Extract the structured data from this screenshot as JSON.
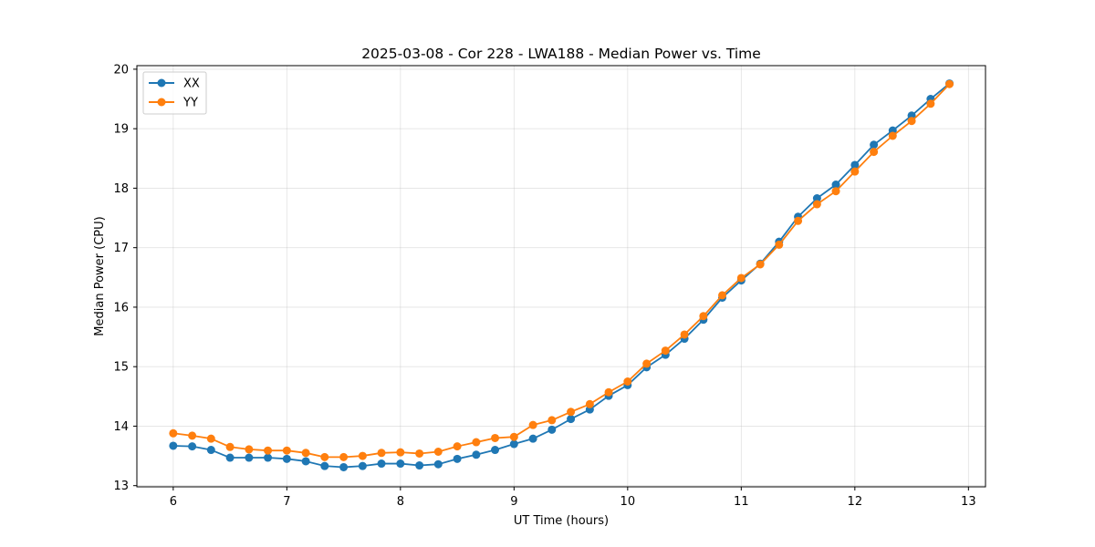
{
  "chart_data": {
    "type": "line",
    "title": "2025-03-08 - Cor 228 - LWA188 - Median Power vs. Time",
    "xlabel": "UT Time (hours)",
    "ylabel": "Median Power (CPU)",
    "xlim": [
      5.68,
      13.15
    ],
    "ylim": [
      12.98,
      20.06
    ],
    "xticks": [
      6,
      7,
      8,
      9,
      10,
      11,
      12,
      13
    ],
    "yticks": [
      13,
      14,
      15,
      16,
      17,
      18,
      19,
      20
    ],
    "grid": true,
    "legend_position": "upper-left",
    "x": [
      6.0,
      6.167,
      6.333,
      6.5,
      6.667,
      6.833,
      7.0,
      7.167,
      7.333,
      7.5,
      7.667,
      7.833,
      8.0,
      8.167,
      8.333,
      8.5,
      8.667,
      8.833,
      9.0,
      9.167,
      9.333,
      9.5,
      9.667,
      9.833,
      10.0,
      10.167,
      10.333,
      10.5,
      10.667,
      10.833,
      11.0,
      11.167,
      11.333,
      11.5,
      11.667,
      11.833,
      12.0,
      12.167,
      12.333,
      12.5,
      12.667,
      12.833
    ],
    "series": [
      {
        "name": "XX",
        "color": "#1f77b4",
        "values": [
          13.67,
          13.66,
          13.6,
          13.47,
          13.47,
          13.47,
          13.45,
          13.41,
          13.33,
          13.31,
          13.33,
          13.37,
          13.37,
          13.34,
          13.36,
          13.45,
          13.52,
          13.6,
          13.7,
          13.79,
          13.94,
          14.12,
          14.28,
          14.51,
          14.69,
          14.99,
          15.2,
          15.47,
          15.79,
          16.16,
          16.45,
          16.73,
          17.1,
          17.52,
          17.83,
          18.06,
          18.39,
          18.73,
          18.97,
          19.22,
          19.5,
          19.76
        ]
      },
      {
        "name": "YY",
        "color": "#ff7f0e",
        "values": [
          13.88,
          13.84,
          13.79,
          13.65,
          13.61,
          13.59,
          13.59,
          13.55,
          13.48,
          13.48,
          13.5,
          13.55,
          13.56,
          13.54,
          13.57,
          13.66,
          13.73,
          13.8,
          13.82,
          14.02,
          14.1,
          14.24,
          14.37,
          14.57,
          14.75,
          15.05,
          15.27,
          15.54,
          15.85,
          16.2,
          16.49,
          16.72,
          17.05,
          17.45,
          17.73,
          17.95,
          18.28,
          18.61,
          18.88,
          19.13,
          19.42,
          19.75
        ]
      }
    ]
  }
}
